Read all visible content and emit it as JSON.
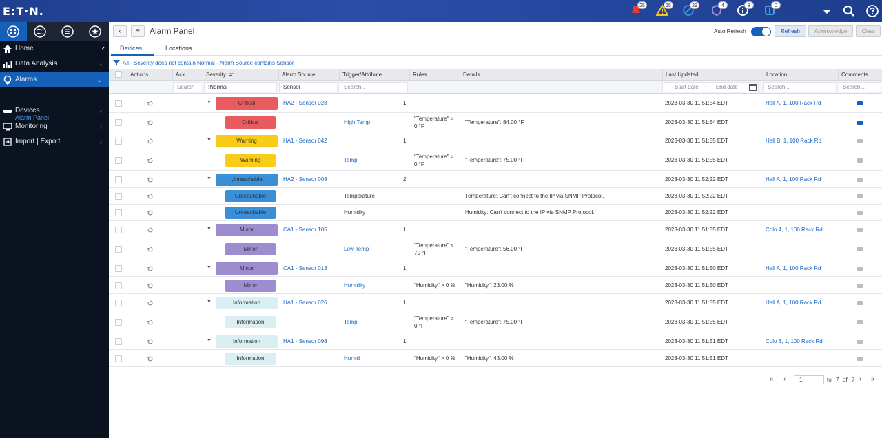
{
  "brand": {
    "logo_text": "E:T·N."
  },
  "topbar": {
    "badges": [
      {
        "icon": "bell-icon",
        "count": "25",
        "color": "#e03a3a"
      },
      {
        "icon": "warning-triangle-icon",
        "count": "15",
        "color": "#f6c416"
      },
      {
        "icon": "unreachable-icon",
        "count": "29",
        "color": "#3a8fd6"
      },
      {
        "icon": "minor-alarm-icon",
        "count": "4",
        "color": "#9d8cd0"
      },
      {
        "icon": "info-icon",
        "count": "8",
        "color": "#ffffff"
      },
      {
        "icon": "notice-icon",
        "count": "0",
        "color": "#3aa7e8"
      }
    ]
  },
  "sidebar": {
    "items": [
      {
        "label": "Home",
        "icon": "home-icon"
      },
      {
        "label": "Data Analysis",
        "icon": "bar-chart-icon"
      },
      {
        "label": "Alarms",
        "icon": "alarm-icon"
      },
      {
        "label": "Devices",
        "icon": "server-icon"
      },
      {
        "label": "Monitoring",
        "icon": "monitor-icon"
      },
      {
        "label": "Import | Export",
        "icon": "import-export-icon"
      }
    ],
    "sub_item": "Alarm Panel"
  },
  "header": {
    "title": "Alarm Panel",
    "auto_refresh_label": "Auto Refresh",
    "auto_refresh_on": true,
    "refresh": "Refresh",
    "acknowledge": "Acknowledge",
    "clear": "Clear"
  },
  "tabs": [
    "Devices",
    "Locations"
  ],
  "filter_text": "All - Severity does not contain Normal - Alarm Source contains Sensor",
  "columns": {
    "actions": "Actions",
    "ack": "Ack",
    "severity": "Severity",
    "alarm_source": "Alarm Source",
    "trigger": "Trigger/Attribute",
    "rules": "Rules",
    "details": "Details",
    "last_updated": "Last Updated",
    "location": "Location",
    "comments": "Comments"
  },
  "filters": {
    "ack": "Search",
    "severity": "!Normal",
    "alarm_source": "Sensor",
    "trigger": "Search...",
    "start_date": "Start date",
    "date_sep": "~",
    "end_date": "End date",
    "location": "Search...",
    "comments": "Search..."
  },
  "rows": [
    {
      "severity": "Critical",
      "sev": "crit",
      "source": "HA2 - Sensor 028",
      "count": "1",
      "trigger": "",
      "rules": "",
      "details": "",
      "updated": "2023-03-30 11:51:54 EDT",
      "location": "Hall A, 1, 100 Rack Rd",
      "parent": true
    },
    {
      "severity": "Critical",
      "sev": "crit",
      "source": "",
      "count": "",
      "trigger": "High Temp",
      "rules": "\"Temperature\" > 0 °F",
      "details": "\"Temperature\": 84.00 °F",
      "updated": "2023-03-30 11:51:54 EDT",
      "location": "",
      "parent": false
    },
    {
      "severity": "Warning",
      "sev": "warn",
      "source": "HA1 - Sensor 042",
      "count": "1",
      "trigger": "",
      "rules": "",
      "details": "",
      "updated": "2023-03-30 11:51:55 EDT",
      "location": "Hall B, 1, 100 Rack Rd",
      "parent": true
    },
    {
      "severity": "Warning",
      "sev": "warn",
      "source": "",
      "count": "",
      "trigger": "Temp",
      "rules": "\"Temperature\" > 0 °F",
      "details": "\"Temperature\": 75.00 °F",
      "updated": "2023-03-30 11:51:55 EDT",
      "location": "",
      "parent": false
    },
    {
      "severity": "Unreachable",
      "sev": "unre",
      "source": "HA2 - Sensor 008",
      "count": "2",
      "trigger": "",
      "rules": "",
      "details": "",
      "updated": "2023-03-30 11:52:22 EDT",
      "location": "Hall A, 1, 100 Rack Rd",
      "parent": true
    },
    {
      "severity": "Unreachable",
      "sev": "unre",
      "source": "",
      "count": "",
      "trigger": "Temperature",
      "rules": "",
      "details": "Temperature: Can't connect to the IP via SNMP Protocol.",
      "updated": "2023-03-30 11:52:22 EDT",
      "location": "",
      "parent": false
    },
    {
      "severity": "Unreachable",
      "sev": "unre",
      "source": "",
      "count": "",
      "trigger": "Humidity",
      "rules": "",
      "details": "Humidity: Can't connect to the IP via SNMP Protocol.",
      "updated": "2023-03-30 11:52:22 EDT",
      "location": "",
      "parent": false
    },
    {
      "severity": "Minor",
      "sev": "minor",
      "source": "CA1 - Sensor 105",
      "count": "1",
      "trigger": "",
      "rules": "",
      "details": "",
      "updated": "2023-03-30 11:51:55 EDT",
      "location": "Colo 4, 1, 100 Rack Rd",
      "parent": true
    },
    {
      "severity": "Minor",
      "sev": "minor",
      "source": "",
      "count": "",
      "trigger": "Low Temp",
      "rules": "\"Temperature\" < 70 °F",
      "details": "\"Temperature\": 56.00 °F",
      "updated": "2023-03-30 11:51:55 EDT",
      "location": "",
      "parent": false
    },
    {
      "severity": "Minor",
      "sev": "minor",
      "source": "CA1 - Sensor 013",
      "count": "1",
      "trigger": "",
      "rules": "",
      "details": "",
      "updated": "2023-03-30 11:51:50 EDT",
      "location": "Hall A, 1, 100 Rack Rd",
      "parent": true
    },
    {
      "severity": "Minor",
      "sev": "minor",
      "source": "",
      "count": "",
      "trigger": "Humidity",
      "rules": "\"Humidity\" > 0 %",
      "details": "\"Humidity\": 23.00 %",
      "updated": "2023-03-30 11:51:50 EDT",
      "location": "",
      "parent": false
    },
    {
      "severity": "Information",
      "sev": "info",
      "source": "HA1 - Sensor 026",
      "count": "1",
      "trigger": "",
      "rules": "",
      "details": "",
      "updated": "2023-03-30 11:51:55 EDT",
      "location": "Hall A, 1, 100 Rack Rd",
      "parent": true
    },
    {
      "severity": "Information",
      "sev": "info",
      "source": "",
      "count": "",
      "trigger": "Temp",
      "rules": "\"Temperature\" > 0 °F",
      "details": "\"Temperature\": 75.00 °F",
      "updated": "2023-03-30 11:51:55 EDT",
      "location": "",
      "parent": false
    },
    {
      "severity": "Information",
      "sev": "info",
      "source": "HA1 - Sensor 098",
      "count": "1",
      "trigger": "",
      "rules": "",
      "details": "",
      "updated": "2023-03-30 11:51:51 EDT",
      "location": "Colo 3, 1, 100 Rack Rd",
      "parent": true
    },
    {
      "severity": "Information",
      "sev": "info",
      "source": "",
      "count": "",
      "trigger": "Humid",
      "rules": "\"Humidity\" > 0 %",
      "details": "\"Humidity\": 43.00 %",
      "updated": "2023-03-30 11:51:51 EDT",
      "location": "",
      "parent": false
    }
  ],
  "pager": {
    "page": "1",
    "to": "to",
    "total": "7",
    "of": "of",
    "total2": "7"
  }
}
